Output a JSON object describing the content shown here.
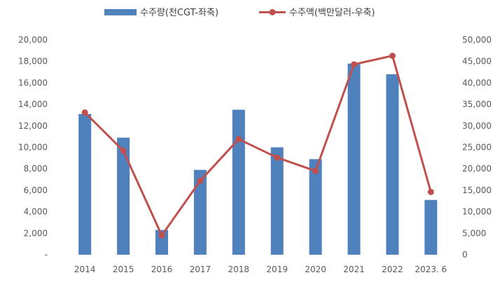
{
  "chart_data": {
    "type": "bar",
    "categories": [
      "2014",
      "2015",
      "2016",
      "2017",
      "2018",
      "2019",
      "2020",
      "2021",
      "2022",
      "2023. 6"
    ],
    "series": [
      {
        "name": "수주량(천CGT-좌축)",
        "type": "bar",
        "axis": "left",
        "color": "#4F81BD",
        "values": [
          13100,
          10900,
          2300,
          7900,
          13500,
          10000,
          8900,
          17800,
          16800,
          5100
        ]
      },
      {
        "name": "수주액(백만달러-우축)",
        "type": "line",
        "axis": "right",
        "color": "#C0504D",
        "values": [
          33100,
          24200,
          4500,
          17200,
          26900,
          22600,
          19500,
          44300,
          46300,
          14600
        ]
      }
    ],
    "y_left": {
      "min": 0,
      "max": 20000,
      "step": 2000,
      "tick_labels": [
        "-",
        "2,000",
        "4,000",
        "6,000",
        "8,000",
        "10,000",
        "12,000",
        "14,000",
        "16,000",
        "18,000",
        "20,000"
      ]
    },
    "y_right": {
      "min": 0,
      "max": 50000,
      "step": 5000,
      "tick_labels": [
        "0",
        "5,000",
        "10,000",
        "15,000",
        "20,000",
        "25,000",
        "30,000",
        "35,000",
        "40,000",
        "45,000",
        "50,000"
      ]
    },
    "grid": false,
    "legend_position": "top"
  }
}
